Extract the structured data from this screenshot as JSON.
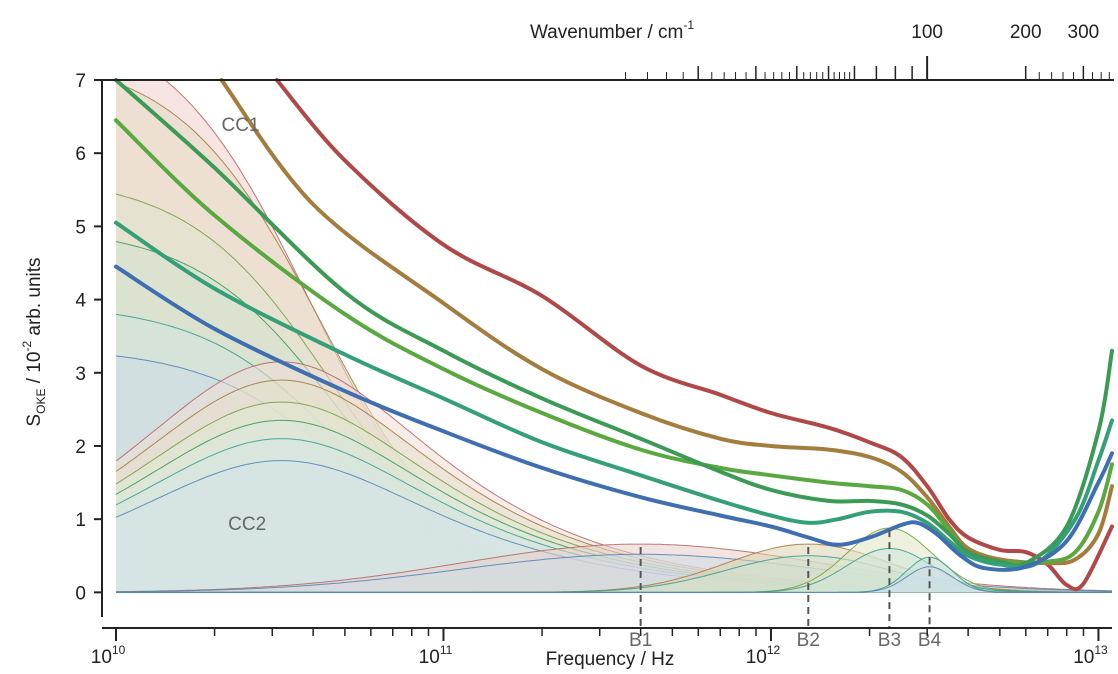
{
  "chart_data": {
    "type": "line",
    "xscale": "log",
    "xlim": [
      10000000000.0,
      11000000000000.0
    ],
    "ylim": [
      -0.2,
      7
    ],
    "grid": false,
    "x_axis": {
      "title": "Frequency / Hz",
      "ticks": [
        {
          "value": 10000000000.0,
          "base": "10",
          "exp": "10"
        },
        {
          "value": 100000000000.0,
          "base": "10",
          "exp": "11"
        },
        {
          "value": 1000000000000.0,
          "base": "10",
          "exp": "12"
        },
        {
          "value": 10000000000000.0,
          "base": "10",
          "exp": "13"
        }
      ]
    },
    "top_axis": {
      "title_main": "Wavenumber / cm",
      "title_exp": "-1",
      "labels": [
        {
          "value": 100,
          "text": "100"
        },
        {
          "value": 200,
          "text": "200"
        },
        {
          "value": 300,
          "text": "300"
        }
      ]
    },
    "y_axis": {
      "title_parts": [
        "S",
        "OKE",
        " / 10",
        "-2",
        " arb. units"
      ],
      "ticks": [
        0,
        1,
        2,
        3,
        4,
        5,
        6,
        7
      ]
    },
    "annotations": [
      {
        "text": "CC1",
        "x": 21000000000.0,
        "y": 6.3
      },
      {
        "text": "CC2",
        "x": 22000000000.0,
        "y": 0.85
      }
    ],
    "band_markers": [
      {
        "label": "B1",
        "x": 400000000000.0,
        "y": 0.62
      },
      {
        "label": "B2",
        "x": 1300000000000.0,
        "y": 0.62
      },
      {
        "label": "B3",
        "x": 2300000000000.0,
        "y": 0.85
      },
      {
        "label": "B4",
        "x": 3050000000000.0,
        "y": 0.48
      }
    ],
    "series": [
      {
        "color": "#b04848",
        "points": [
          [
            31000000000.0,
            7.0
          ],
          [
            50000000000.0,
            5.9
          ],
          [
            100000000000.0,
            4.75
          ],
          [
            200000000000.0,
            4.05
          ],
          [
            400000000000.0,
            3.1
          ],
          [
            700000000000.0,
            2.7
          ],
          [
            1000000000000.0,
            2.45
          ],
          [
            1500000000000.0,
            2.25
          ],
          [
            2000000000000.0,
            2.05
          ],
          [
            2500000000000.0,
            1.85
          ],
          [
            3000000000000.0,
            1.45
          ],
          [
            3500000000000.0,
            1.0
          ],
          [
            4000000000000.0,
            0.75
          ],
          [
            5000000000000.0,
            0.58
          ],
          [
            6000000000000.0,
            0.55
          ],
          [
            7000000000000.0,
            0.38
          ],
          [
            8000000000000.0,
            0.1
          ],
          [
            9000000000000.0,
            0.12
          ],
          [
            11000000000000.0,
            0.9
          ]
        ]
      },
      {
        "color": "#a47c3e",
        "points": [
          [
            21000000000.0,
            7.0
          ],
          [
            40000000000.0,
            5.3
          ],
          [
            100000000000.0,
            3.95
          ],
          [
            200000000000.0,
            3.05
          ],
          [
            400000000000.0,
            2.45
          ],
          [
            700000000000.0,
            2.1
          ],
          [
            1000000000000.0,
            2.0
          ],
          [
            1500000000000.0,
            1.95
          ],
          [
            2000000000000.0,
            1.85
          ],
          [
            2500000000000.0,
            1.65
          ],
          [
            3000000000000.0,
            1.3
          ],
          [
            3500000000000.0,
            0.9
          ],
          [
            4000000000000.0,
            0.6
          ],
          [
            5000000000000.0,
            0.45
          ],
          [
            7000000000000.0,
            0.4
          ],
          [
            8500000000000.0,
            0.45
          ],
          [
            10000000000000.0,
            0.8
          ],
          [
            11000000000000.0,
            1.45
          ]
        ]
      },
      {
        "color": "#5aa840",
        "points": [
          [
            10000000000.0,
            6.45
          ],
          [
            20000000000.0,
            5.15
          ],
          [
            50000000000.0,
            3.8
          ],
          [
            100000000000.0,
            3.05
          ],
          [
            200000000000.0,
            2.45
          ],
          [
            400000000000.0,
            1.95
          ],
          [
            700000000000.0,
            1.7
          ],
          [
            1000000000000.0,
            1.6
          ],
          [
            1500000000000.0,
            1.5
          ],
          [
            2000000000000.0,
            1.45
          ],
          [
            2500000000000.0,
            1.4
          ],
          [
            3000000000000.0,
            1.2
          ],
          [
            3500000000000.0,
            0.85
          ],
          [
            4000000000000.0,
            0.55
          ],
          [
            5000000000000.0,
            0.42
          ],
          [
            7000000000000.0,
            0.42
          ],
          [
            8500000000000.0,
            0.55
          ],
          [
            10000000000000.0,
            1.1
          ],
          [
            11000000000000.0,
            1.75
          ]
        ]
      },
      {
        "color": "#3b9a54",
        "points": [
          [
            10000000000.0,
            7.0
          ],
          [
            20000000000.0,
            5.8
          ],
          [
            50000000000.0,
            4.1
          ],
          [
            100000000000.0,
            3.3
          ],
          [
            200000000000.0,
            2.65
          ],
          [
            400000000000.0,
            2.1
          ],
          [
            700000000000.0,
            1.65
          ],
          [
            1000000000000.0,
            1.4
          ],
          [
            1500000000000.0,
            1.25
          ],
          [
            2000000000000.0,
            1.25
          ],
          [
            2500000000000.0,
            1.2
          ],
          [
            3000000000000.0,
            1.05
          ],
          [
            3500000000000.0,
            0.8
          ],
          [
            4000000000000.0,
            0.55
          ],
          [
            5000000000000.0,
            0.42
          ],
          [
            6000000000000.0,
            0.4
          ],
          [
            8000000000000.0,
            0.9
          ],
          [
            10000000000000.0,
            2.2
          ],
          [
            11000000000000.0,
            3.3
          ]
        ]
      },
      {
        "color": "#35a078",
        "points": [
          [
            10000000000.0,
            5.05
          ],
          [
            20000000000.0,
            4.15
          ],
          [
            50000000000.0,
            3.25
          ],
          [
            100000000000.0,
            2.65
          ],
          [
            200000000000.0,
            2.05
          ],
          [
            400000000000.0,
            1.6
          ],
          [
            700000000000.0,
            1.25
          ],
          [
            1000000000000.0,
            1.05
          ],
          [
            1300000000000.0,
            0.95
          ],
          [
            1600000000000.0,
            1.0
          ],
          [
            2000000000000.0,
            1.1
          ],
          [
            2500000000000.0,
            1.1
          ],
          [
            3000000000000.0,
            0.95
          ],
          [
            3500000000000.0,
            0.7
          ],
          [
            4000000000000.0,
            0.5
          ],
          [
            5000000000000.0,
            0.38
          ],
          [
            6500000000000.0,
            0.4
          ],
          [
            8500000000000.0,
            1.0
          ],
          [
            10000000000000.0,
            1.8
          ],
          [
            11000000000000.0,
            2.35
          ]
        ]
      },
      {
        "color": "#3f6fb0",
        "points": [
          [
            10000000000.0,
            4.45
          ],
          [
            20000000000.0,
            3.6
          ],
          [
            50000000000.0,
            2.75
          ],
          [
            100000000000.0,
            2.2
          ],
          [
            200000000000.0,
            1.7
          ],
          [
            400000000000.0,
            1.3
          ],
          [
            700000000000.0,
            1.05
          ],
          [
            1000000000000.0,
            0.9
          ],
          [
            1300000000000.0,
            0.75
          ],
          [
            1600000000000.0,
            0.65
          ],
          [
            2000000000000.0,
            0.75
          ],
          [
            2500000000000.0,
            0.92
          ],
          [
            2800000000000.0,
            0.95
          ],
          [
            3200000000000.0,
            0.8
          ],
          [
            3800000000000.0,
            0.5
          ],
          [
            4500000000000.0,
            0.33
          ],
          [
            6000000000000.0,
            0.35
          ],
          [
            8000000000000.0,
            0.7
          ],
          [
            10000000000000.0,
            1.5
          ],
          [
            11000000000000.0,
            1.9
          ]
        ]
      }
    ],
    "components": [
      {
        "kind": "cc1",
        "color": "#b86868",
        "fill": "#eecfcc",
        "a": 7.9,
        "t": 15.5
      },
      {
        "kind": "cc1",
        "color": "#a47c3e",
        "fill": "#e6dcc4",
        "a": 7.35,
        "t": 18.0
      },
      {
        "kind": "cc1",
        "color": "#7aa040",
        "fill": "#dfe6cc",
        "a": 5.7,
        "t": 21.0
      },
      {
        "kind": "cc1",
        "color": "#3d9a5a",
        "fill": "#d4e4d2",
        "a": 5.0,
        "t": 23.0
      },
      {
        "kind": "cc1",
        "color": "#3aa090",
        "fill": "#cfe3de",
        "a": 3.95,
        "t": 25.0
      },
      {
        "kind": "cc1",
        "color": "#5a84b8",
        "fill": "#d0dde8",
        "a": 3.35,
        "t": 27.0
      },
      {
        "kind": "cc2",
        "color": "#b86868",
        "fill": "#eedcd6",
        "a": 3.15
      },
      {
        "kind": "cc2",
        "color": "#a47c3e",
        "fill": "#e6e0cc",
        "a": 2.9
      },
      {
        "kind": "cc2",
        "color": "#7aa040",
        "fill": "#e0e8d2",
        "a": 2.6
      },
      {
        "kind": "cc2",
        "color": "#3d9a5a",
        "fill": "#d8e8da",
        "a": 2.35
      },
      {
        "kind": "cc2",
        "color": "#3aa090",
        "fill": "#d4e6e2",
        "a": 2.1
      },
      {
        "kind": "cc2",
        "color": "#5a84b8",
        "fill": "#d6e4ea",
        "a": 1.8
      },
      {
        "kind": "band",
        "color": "#b86868",
        "fill": "#e8cfc8",
        "center": 400000000000.0,
        "a": 0.66,
        "w": 0.55
      },
      {
        "kind": "band",
        "color": "#5a84b8",
        "fill": "#cfdde6",
        "center": 400000000000.0,
        "a": 0.52,
        "w": 0.55
      },
      {
        "kind": "band",
        "color": "#a47c3e",
        "fill": "#ddd3b0",
        "center": 1300000000000.0,
        "a": 0.66,
        "w": 0.25
      },
      {
        "kind": "band",
        "color": "#3aa090",
        "fill": "#cfe3d4",
        "center": 1300000000000.0,
        "a": 0.5,
        "w": 0.25
      },
      {
        "kind": "band",
        "color": "#7aa040",
        "fill": "#dfe6c2",
        "center": 2300000000000.0,
        "a": 0.88,
        "w": 0.13
      },
      {
        "kind": "band",
        "color": "#3aa090",
        "fill": "#cfe6dc",
        "center": 2300000000000.0,
        "a": 0.6,
        "w": 0.13
      },
      {
        "kind": "band",
        "color": "#3aa090",
        "fill": "#c7e3de",
        "center": 3050000000000.0,
        "a": 0.48,
        "w": 0.07
      },
      {
        "kind": "band",
        "color": "#5a84b8",
        "fill": "#cfdfea",
        "center": 3050000000000.0,
        "a": 0.35,
        "w": 0.07
      }
    ]
  }
}
